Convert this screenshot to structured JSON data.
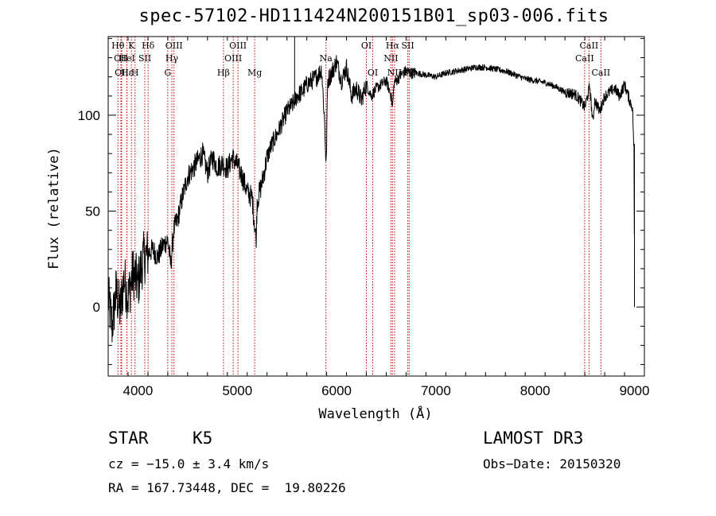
{
  "chart_data": {
    "type": "line",
    "title": "spec-57102-HD111424N200151B01_sp03-006.fits",
    "xlabel": "Wavelength (Å)",
    "ylabel": "Flux (relative)",
    "xlim": [
      3700,
      9100
    ],
    "ylim": [
      -36,
      141
    ],
    "xticks": [
      4000,
      5000,
      6000,
      7000,
      8000,
      9000
    ],
    "yticks": [
      0,
      50,
      100
    ],
    "grid": false,
    "series": [
      {
        "name": "spectrum",
        "x": [
          3700,
          3740,
          3780,
          3820,
          3860,
          3900,
          3950,
          4000,
          4050,
          4100,
          4150,
          4200,
          4250,
          4300,
          4330,
          4360,
          4400,
          4450,
          4500,
          4550,
          4600,
          4650,
          4700,
          4750,
          4800,
          4850,
          4900,
          4950,
          5000,
          5050,
          5100,
          5150,
          5170,
          5190,
          5200,
          5250,
          5300,
          5350,
          5400,
          5450,
          5500,
          5550,
          5600,
          5650,
          5700,
          5750,
          5800,
          5850,
          5880,
          5895,
          5910,
          5950,
          6000,
          6050,
          6100,
          6150,
          6200,
          6250,
          6300,
          6350,
          6400,
          6450,
          6500,
          6550,
          6563,
          6580,
          6600,
          6650,
          6700,
          6750,
          6800,
          6900,
          7000,
          7100,
          7200,
          7300,
          7400,
          7500,
          7600,
          7700,
          7800,
          7900,
          8000,
          8100,
          8200,
          8300,
          8400,
          8450,
          8500,
          8550,
          8580,
          8600,
          8650,
          8700,
          8750,
          8800,
          8850,
          8900,
          8950,
          8980,
          8995,
          9000
        ],
        "y": [
          5,
          -10,
          8,
          -2,
          15,
          5,
          18,
          12,
          25,
          28,
          30,
          26,
          32,
          35,
          22,
          40,
          46,
          58,
          68,
          72,
          76,
          80,
          70,
          78,
          73,
          75,
          72,
          78,
          74,
          68,
          60,
          57,
          45,
          35,
          55,
          65,
          78,
          85,
          90,
          96,
          102,
          105,
          110,
          112,
          116,
          118,
          120,
          124,
          96,
          72,
          118,
          122,
          128,
          118,
          125,
          110,
          114,
          108,
          116,
          110,
          114,
          116,
          118,
          110,
          104,
          117,
          118,
          121,
          123,
          122,
          122,
          121,
          120,
          122,
          123,
          124,
          125,
          125,
          124,
          123,
          121,
          119,
          118,
          117,
          115,
          112,
          111,
          108,
          104,
          115,
          96,
          108,
          102,
          110,
          112,
          114,
          110,
          116,
          108,
          104,
          82,
          5
        ]
      }
    ],
    "lines": [
      {
        "wavelength": 3798,
        "label": "Hθ",
        "level": 1
      },
      {
        "wavelength": 3828,
        "label": "OII",
        "level": 2
      },
      {
        "wavelength": 3836,
        "label": "OII",
        "level": 3
      },
      {
        "wavelength": 3889,
        "label": "Hε",
        "level": 3
      },
      {
        "wavelength": 3889,
        "label": "HeI",
        "level": 2
      },
      {
        "wavelength": 3934,
        "label": "K",
        "level": 1
      },
      {
        "wavelength": 3970,
        "label": "H",
        "level": 3
      },
      {
        "wavelength": 4069,
        "label": "SII",
        "level": 2
      },
      {
        "wavelength": 4102,
        "label": "Hδ",
        "level": 1
      },
      {
        "wavelength": 4300,
        "label": "G",
        "level": 3
      },
      {
        "wavelength": 4341,
        "label": "Hγ",
        "level": 2
      },
      {
        "wavelength": 4363,
        "label": "OIII",
        "level": 1
      },
      {
        "wavelength": 4861,
        "label": "Hβ",
        "level": 3
      },
      {
        "wavelength": 4959,
        "label": "OIII",
        "level": 2
      },
      {
        "wavelength": 5007,
        "label": "OIII",
        "level": 1
      },
      {
        "wavelength": 5175,
        "label": "Mg",
        "level": 3
      },
      {
        "wavelength": 5893,
        "label": "Na",
        "level": 2
      },
      {
        "wavelength": 6300,
        "label": "OI",
        "level": 1
      },
      {
        "wavelength": 6364,
        "label": "OI",
        "level": 3
      },
      {
        "wavelength": 6548,
        "label": "NII",
        "level": 2
      },
      {
        "wavelength": 6563,
        "label": "Hα",
        "level": 1
      },
      {
        "wavelength": 6584,
        "label": "NII",
        "level": 3
      },
      {
        "wavelength": 6717,
        "label": "SII",
        "level": 1
      },
      {
        "wavelength": 6731,
        "label": "SII",
        "level": 3
      },
      {
        "wavelength": 8498,
        "label": "CaII",
        "level": 2
      },
      {
        "wavelength": 8542,
        "label": "CaII",
        "level": 1
      },
      {
        "wavelength": 8662,
        "label": "CaII",
        "level": 3
      }
    ],
    "colors": {
      "spectrum": "#000000",
      "lines": "#cc0000",
      "axis": "#000000"
    }
  },
  "info": {
    "object_class": "STAR",
    "subclass": "K5",
    "survey": "LAMOST DR3",
    "cz": "cz = −15.0 ± 3.4 km/s",
    "obs_date": "Obs−Date: 20150320",
    "coords": "RA = 167.73448, DEC =  19.80226"
  }
}
